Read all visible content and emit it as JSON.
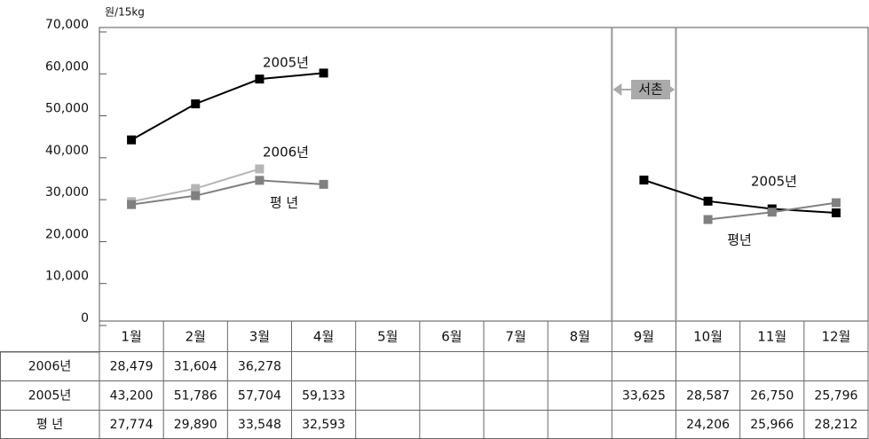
{
  "chart_data": {
    "type": "line",
    "y_unit": "원/15kg",
    "categories": [
      "1월",
      "2월",
      "3월",
      "4월",
      "5월",
      "6월",
      "7월",
      "8월",
      "9월",
      "10월",
      "11월",
      "12월"
    ],
    "series": [
      {
        "name": "2006년",
        "color": "#b5b5b5",
        "values": [
          28479,
          31604,
          36278,
          null,
          null,
          null,
          null,
          null,
          null,
          null,
          null,
          null
        ],
        "value_labels": [
          "28,479",
          "31,604",
          "36,278",
          null,
          null,
          null,
          null,
          null,
          null,
          null,
          null,
          null
        ]
      },
      {
        "name": "2005년",
        "color": "#000000",
        "values": [
          43200,
          51786,
          57704,
          59133,
          null,
          null,
          null,
          null,
          33625,
          28587,
          26750,
          25796
        ],
        "value_labels": [
          "43,200",
          "51,786",
          "57,704",
          "59,133",
          null,
          null,
          null,
          null,
          "33,625",
          "28,587",
          "26,750",
          "25,796"
        ]
      },
      {
        "name": "평 년",
        "color": "#808080",
        "values": [
          27774,
          29890,
          33548,
          32593,
          null,
          null,
          null,
          null,
          null,
          24206,
          25966,
          28212
        ],
        "value_labels": [
          "27,774",
          "29,890",
          "33,548",
          "32,593",
          null,
          null,
          null,
          null,
          null,
          "24,206",
          "25,966",
          "28,212"
        ]
      }
    ],
    "annotations": [
      "2005년",
      "2006년",
      "평 년",
      "서촌",
      "2005년",
      "평년"
    ],
    "ylim": [
      0,
      70000
    ],
    "yticks": [
      0,
      {
        "value": 10000,
        "label": "10,000"
      },
      {
        "value": 20000,
        "label": "20,000"
      },
      {
        "value": 30000,
        "label": "30,000"
      },
      {
        "value": 40000,
        "label": "40,000"
      },
      {
        "value": 50000,
        "label": "50,000"
      },
      {
        "value": 60000,
        "label": "60,000"
      },
      {
        "value": 70000,
        "label": "70,000"
      }
    ]
  }
}
